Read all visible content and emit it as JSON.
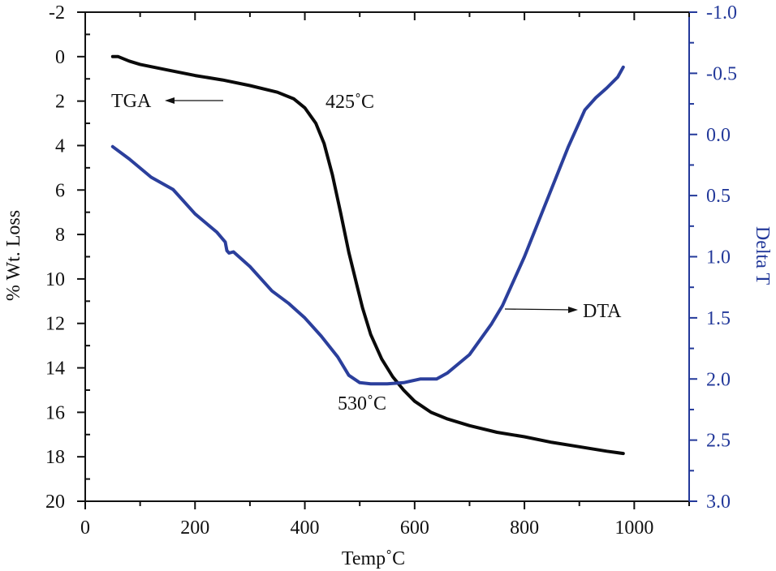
{
  "chart_data": {
    "type": "line",
    "title": "",
    "xlabel": "Temp˚C",
    "ylabel": "% Wt. Loss",
    "y2label": "Delta T",
    "xlim": [
      0,
      1100
    ],
    "ylim": [
      20,
      -2
    ],
    "y2lim": [
      3.0,
      -1.0
    ],
    "x_ticks": [
      0,
      200,
      400,
      600,
      800,
      1000
    ],
    "x_tick_labels": [
      "0",
      "200",
      "400",
      "600",
      "800",
      "1000"
    ],
    "x_minor_step": 100,
    "y_ticks": [
      -2,
      0,
      2,
      4,
      6,
      8,
      10,
      12,
      14,
      16,
      18,
      20
    ],
    "y_tick_labels": [
      "-2",
      "0",
      "2",
      "4",
      "6",
      "8",
      "10",
      "12",
      "14",
      "16",
      "18",
      "20"
    ],
    "y_minor_step": 1,
    "y2_ticks": [
      -1.0,
      -0.5,
      0.0,
      0.5,
      1.0,
      1.5,
      2.0,
      2.5,
      3.0
    ],
    "y2_tick_labels": [
      "-1.0",
      "-0.5",
      "0.0",
      "0.5",
      "1.0",
      "1.5",
      "2.0",
      "2.5",
      "3.0"
    ],
    "y2_minor_step": 0.25,
    "grid": false,
    "legend": "none",
    "colors": {
      "tga": "#0a0a0a",
      "dta": "#2b3f9c",
      "right_axis": "#23399a"
    },
    "series": [
      {
        "name": "TGA",
        "axis": "left",
        "x": [
          50,
          60,
          80,
          100,
          150,
          200,
          250,
          300,
          350,
          380,
          400,
          420,
          435,
          450,
          465,
          480,
          495,
          505,
          520,
          540,
          560,
          580,
          600,
          630,
          660,
          700,
          750,
          800,
          850,
          900,
          950,
          980
        ],
        "y": [
          0.0,
          0.0,
          0.2,
          0.35,
          0.6,
          0.85,
          1.05,
          1.3,
          1.6,
          1.9,
          2.3,
          3.0,
          3.9,
          5.3,
          7.0,
          8.8,
          10.3,
          11.3,
          12.5,
          13.6,
          14.4,
          15.0,
          15.5,
          16.0,
          16.3,
          16.6,
          16.9,
          17.1,
          17.35,
          17.55,
          17.75,
          17.85
        ]
      },
      {
        "name": "DTA",
        "axis": "right",
        "x": [
          50,
          80,
          120,
          160,
          170,
          200,
          240,
          255,
          258,
          262,
          270,
          300,
          340,
          370,
          400,
          430,
          460,
          480,
          500,
          520,
          550,
          580,
          610,
          640,
          660,
          700,
          740,
          760,
          800,
          840,
          880,
          910,
          930,
          950,
          970,
          980
        ],
        "y": [
          0.1,
          0.2,
          0.35,
          0.45,
          0.5,
          0.65,
          0.8,
          0.88,
          0.95,
          0.97,
          0.96,
          1.08,
          1.28,
          1.38,
          1.5,
          1.65,
          1.82,
          1.97,
          2.03,
          2.04,
          2.04,
          2.03,
          2.0,
          2.0,
          1.95,
          1.8,
          1.55,
          1.4,
          1.0,
          0.55,
          0.1,
          -0.2,
          -0.3,
          -0.38,
          -0.47,
          -0.55
        ]
      }
    ],
    "annotations": [
      {
        "text": "TGA",
        "x": 75,
        "y": 1.9,
        "axis": "left",
        "arrow_direction": "left"
      },
      {
        "text": "425˚C",
        "x": 435,
        "y": 1.9,
        "axis": "left"
      },
      {
        "text": "530˚C",
        "x": 445,
        "y": 16.2,
        "axis": "left"
      },
      {
        "text": "DTA",
        "x": 820,
        "y": 1.4,
        "axis": "right",
        "arrow_direction": "right"
      }
    ]
  }
}
